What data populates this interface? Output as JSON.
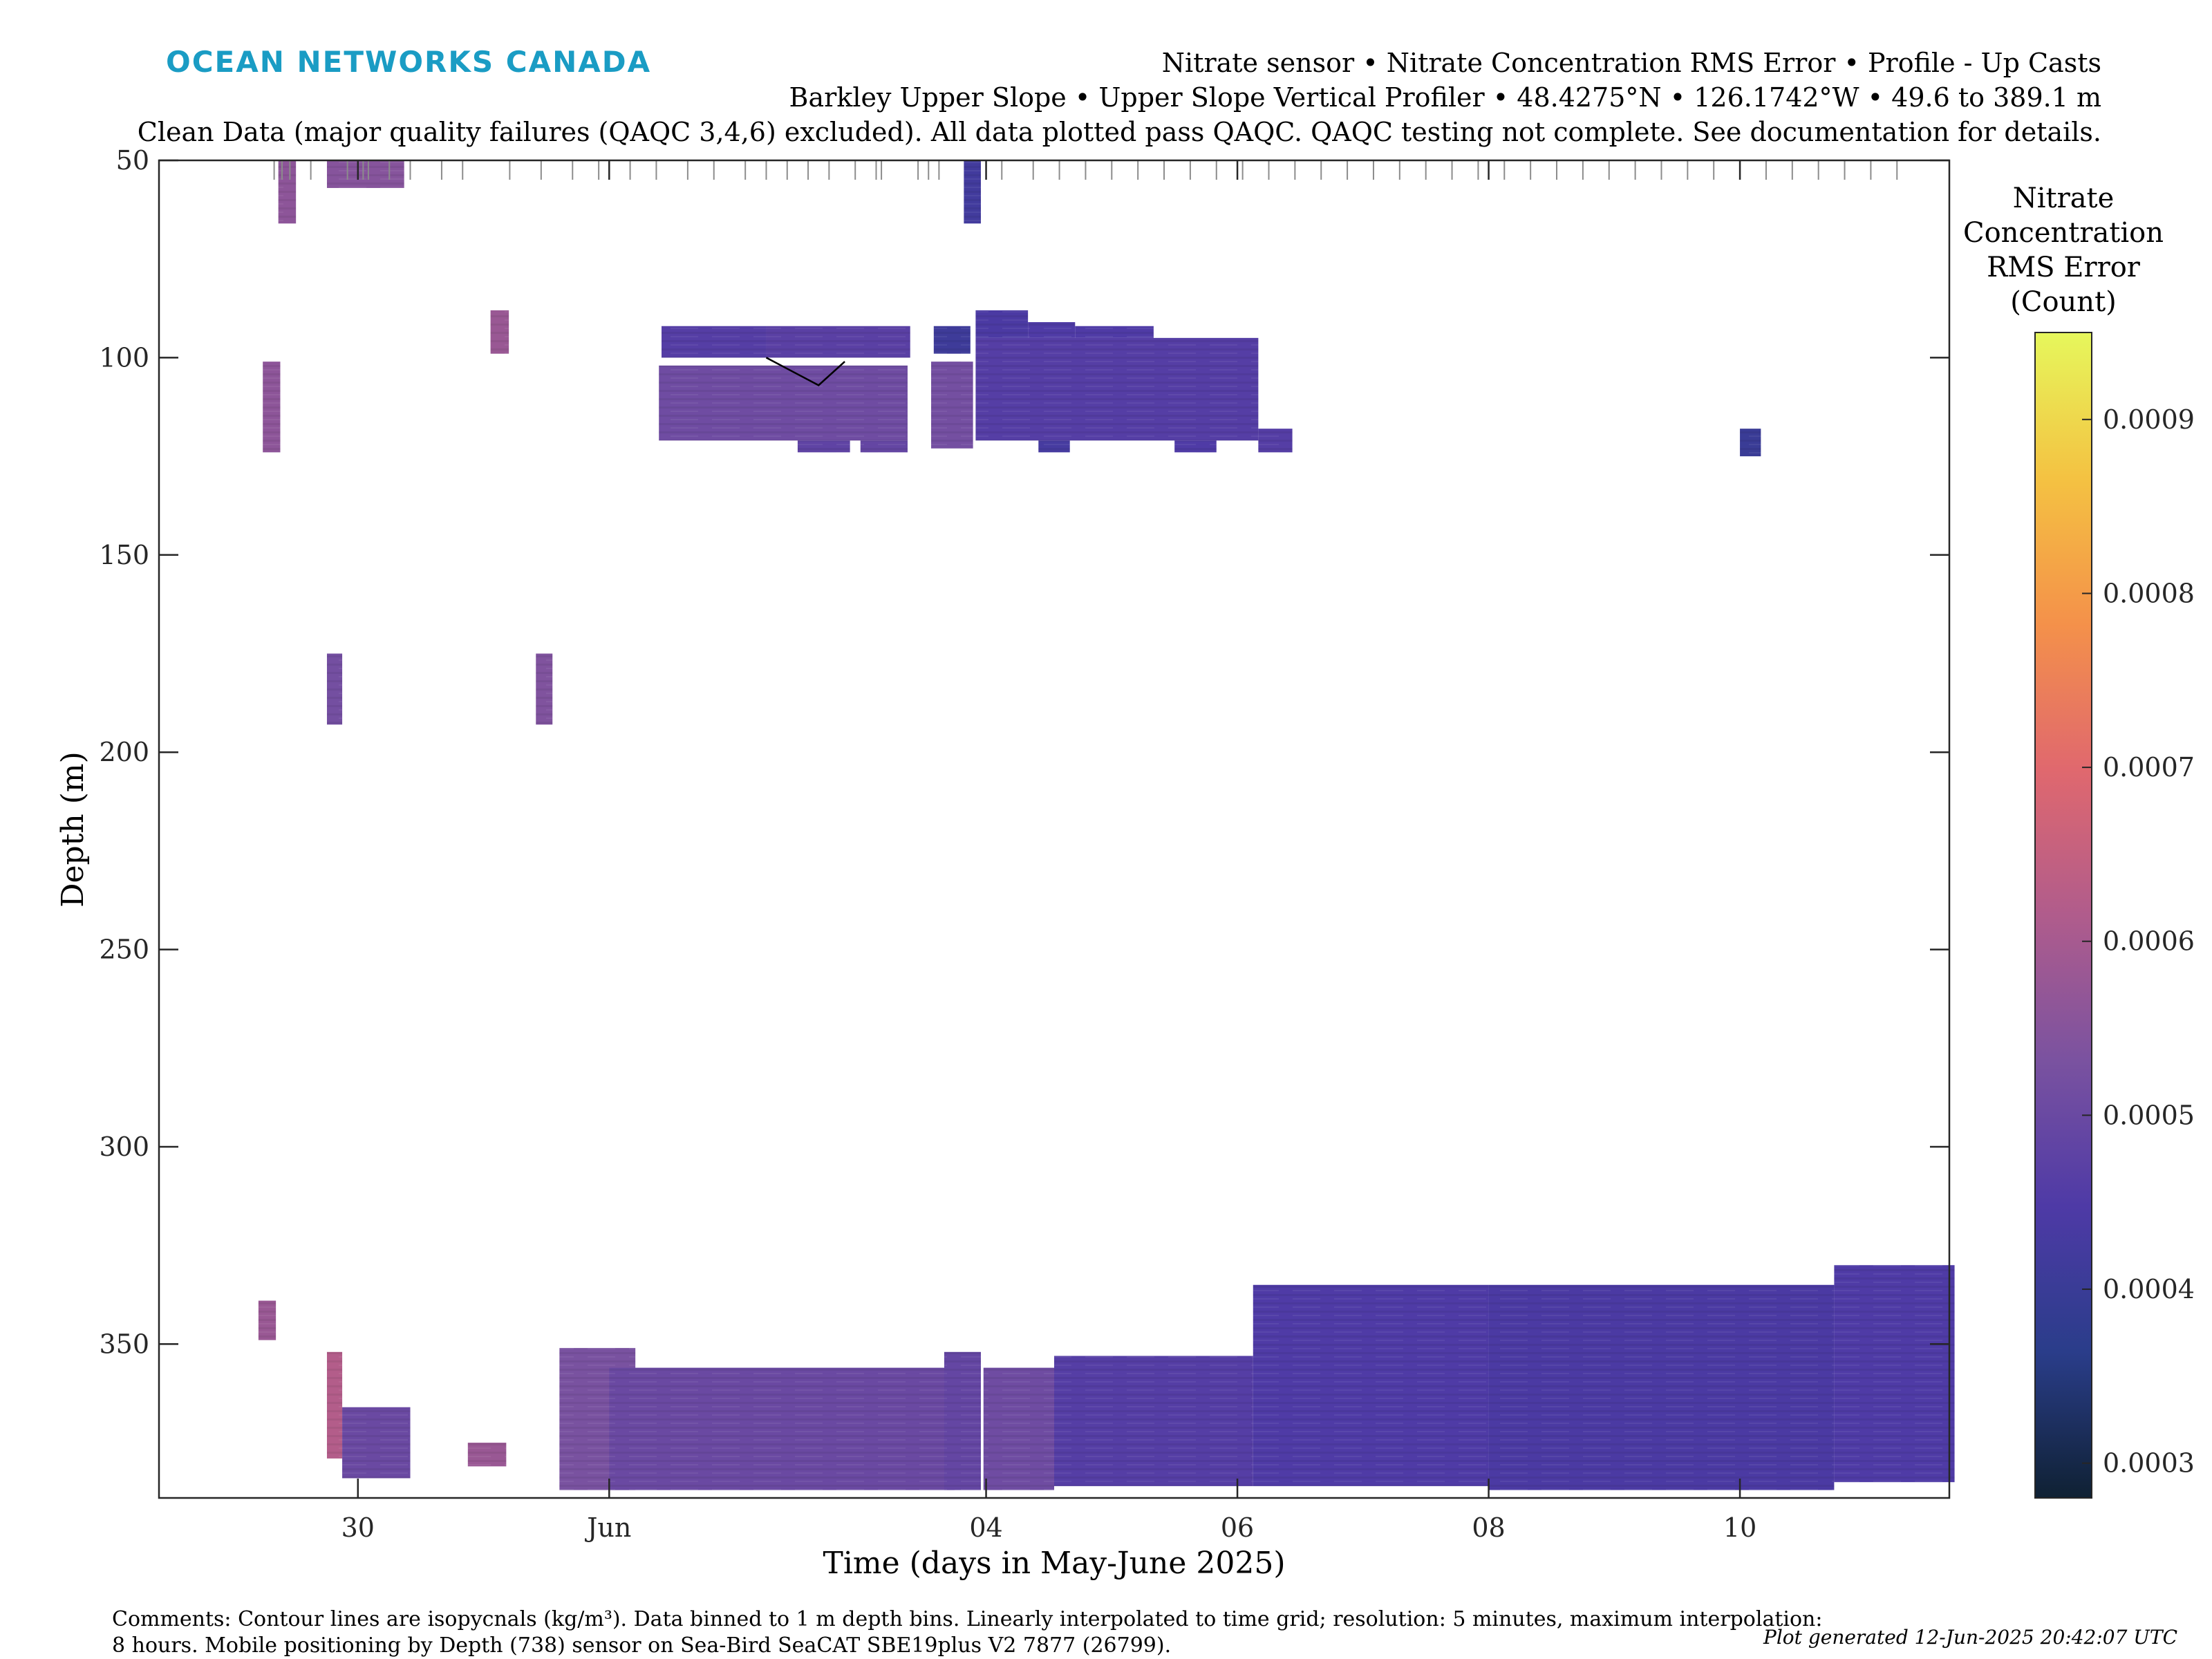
{
  "brand": {
    "logo_text": "OCEAN NETWORKS CANADA",
    "color": "#1a9cc4"
  },
  "header": {
    "line1": "Nitrate sensor • Nitrate Concentration RMS Error • Profile - Up Casts",
    "line2": "Barkley Upper Slope • Upper Slope Vertical Profiler • 48.4275°N • 126.1742°W • 49.6 to 389.1 m",
    "line3": "Clean Data (major quality failures (QAQC 3,4,6) excluded). All data plotted pass QAQC. QAQC testing not complete. See documentation for details."
  },
  "footer": {
    "comments_line1": "Comments: Contour lines are isopycnals (kg/m³). Data binned to 1 m depth bins. Linearly interpolated to time grid; resolution: 5 minutes, maximum interpolation:",
    "comments_line2": "8 hours. Mobile positioning by Depth (738) sensor on Sea-Bird SeaCAT SBE19plus V2 7877 (26799).",
    "generated": "Plot generated 12-Jun-2025 20:42:07 UTC"
  },
  "chart_data": {
    "type": "heatmap",
    "title": "",
    "xlabel": "Time (days in May-June 2025)",
    "ylabel": "Depth (m)",
    "xlim": [
      "2025-05-28T10:00",
      "2025-06-11T16:00"
    ],
    "ylim": [
      50,
      389
    ],
    "y_reversed": true,
    "x_ticks": [
      {
        "t": "2025-05-30T00:00",
        "label": "30"
      },
      {
        "t": "2025-06-01T00:00",
        "label": "Jun"
      },
      {
        "t": "2025-06-04T00:00",
        "label": "04"
      },
      {
        "t": "2025-06-06T00:00",
        "label": "06"
      },
      {
        "t": "2025-06-08T00:00",
        "label": "08"
      },
      {
        "t": "2025-06-10T00:00",
        "label": "10"
      }
    ],
    "y_ticks": [
      50,
      100,
      150,
      200,
      250,
      300,
      350
    ],
    "grid": false,
    "colorbar": {
      "title": [
        "Nitrate",
        "Concentration",
        "RMS Error",
        "(Count)"
      ],
      "min": 0.00028,
      "max": 0.00095,
      "ticks": [
        0.0003,
        0.0004,
        0.0005,
        0.0006,
        0.0007,
        0.0008,
        0.0009
      ],
      "tick_labels": [
        "0.0003",
        "0.0004",
        "0.0005",
        "0.0006",
        "0.0007",
        "0.0008",
        "0.0009"
      ],
      "colormap": [
        "#0f2133",
        "#2a3d8a",
        "#4e3aa6",
        "#7a52a0",
        "#b05c8c",
        "#e0686e",
        "#f4914a",
        "#f4c242",
        "#e6f75c"
      ]
    },
    "cast_times": [
      "2025-05-29T08:00",
      "2025-05-29T09:30",
      "2025-05-29T11:00",
      "2025-05-29T15:00",
      "2025-05-29T22:00",
      "2025-05-30T01:00",
      "2025-05-30T02:00",
      "2025-05-30T06:00",
      "2025-05-30T10:00",
      "2025-05-30T16:00",
      "2025-05-30T20:00",
      "2025-05-31T05:00",
      "2025-05-31T11:00",
      "2025-05-31T17:00",
      "2025-05-31T22:00",
      "2025-06-01T04:00",
      "2025-06-01T09:00",
      "2025-06-01T15:00",
      "2025-06-01T20:00",
      "2025-06-02T02:00",
      "2025-06-02T06:00",
      "2025-06-02T10:00",
      "2025-06-02T14:00",
      "2025-06-02T18:00",
      "2025-06-02T23:00",
      "2025-06-03T03:00",
      "2025-06-03T04:00",
      "2025-06-03T11:00",
      "2025-06-03T13:00",
      "2025-06-03T15:00",
      "2025-06-04T03:00",
      "2025-06-04T09:00",
      "2025-06-04T14:00",
      "2025-06-04T19:00",
      "2025-06-05T00:00",
      "2025-06-05T05:00",
      "2025-06-05T10:00",
      "2025-06-05T15:00",
      "2025-06-05T20:00",
      "2025-06-06T01:00",
      "2025-06-06T06:00",
      "2025-06-06T11:00",
      "2025-06-06T16:00",
      "2025-06-06T21:00",
      "2025-06-07T02:00",
      "2025-06-07T07:00",
      "2025-06-07T12:00",
      "2025-06-07T17:00",
      "2025-06-07T22:00",
      "2025-06-08T03:00",
      "2025-06-08T08:00",
      "2025-06-08T13:00",
      "2025-06-08T18:00",
      "2025-06-08T23:00",
      "2025-06-09T04:00",
      "2025-06-09T09:00",
      "2025-06-09T14:00",
      "2025-06-09T19:00",
      "2025-06-10T00:00",
      "2025-06-10T05:00",
      "2025-06-10T10:00",
      "2025-06-10T15:00",
      "2025-06-10T20:00",
      "2025-06-11T01:00",
      "2025-06-11T06:00"
    ],
    "blocks": [
      {
        "t0": "2025-05-29T08:48",
        "t1": "2025-05-29T12:10",
        "d0": 50,
        "d1": 66,
        "value": 0.00056
      },
      {
        "t0": "2025-05-29T18:05",
        "t1": "2025-05-30T08:50",
        "d0": 50,
        "d1": 57,
        "value": 0.00055
      },
      {
        "t0": "2025-06-03T19:45",
        "t1": "2025-06-03T23:00",
        "d0": 50,
        "d1": 66,
        "value": 0.00042
      },
      {
        "t0": "2025-05-31T01:20",
        "t1": "2025-05-31T04:50",
        "d0": 88,
        "d1": 99,
        "value": 0.00058
      },
      {
        "t0": "2025-05-29T05:50",
        "t1": "2025-05-29T09:10",
        "d0": 101,
        "d1": 124,
        "value": 0.00056
      },
      {
        "t0": "2025-06-01T10:00",
        "t1": "2025-06-02T06:00",
        "d0": 92,
        "d1": 100,
        "value": 0.00046
      },
      {
        "t0": "2025-06-02T06:00",
        "t1": "2025-06-03T09:30",
        "d0": 92,
        "d1": 100,
        "value": 0.00047
      },
      {
        "t0": "2025-06-01T09:30",
        "t1": "2025-06-03T09:00",
        "d0": 102,
        "d1": 121,
        "value": 0.00051
      },
      {
        "t0": "2025-06-02T12:00",
        "t1": "2025-06-02T22:00",
        "d0": 121,
        "d1": 124,
        "value": 0.00048
      },
      {
        "t0": "2025-06-03T00:00",
        "t1": "2025-06-03T09:00",
        "d0": 121,
        "d1": 124,
        "value": 0.00049
      },
      {
        "t0": "2025-06-03T14:00",
        "t1": "2025-06-03T21:00",
        "d0": 92,
        "d1": 99,
        "value": 0.00041
      },
      {
        "t0": "2025-06-03T13:30",
        "t1": "2025-06-03T21:30",
        "d0": 101,
        "d1": 123,
        "value": 0.00052
      },
      {
        "t0": "2025-06-03T22:00",
        "t1": "2025-06-06T04:00",
        "d0": 95,
        "d1": 121,
        "value": 0.00046
      },
      {
        "t0": "2025-06-03T22:00",
        "t1": "2025-06-04T08:00",
        "d0": 88,
        "d1": 95,
        "value": 0.00044
      },
      {
        "t0": "2025-06-04T08:00",
        "t1": "2025-06-04T17:00",
        "d0": 91,
        "d1": 95,
        "value": 0.00045
      },
      {
        "t0": "2025-06-04T17:00",
        "t1": "2025-06-05T08:00",
        "d0": 92,
        "d1": 95,
        "value": 0.00045
      },
      {
        "t0": "2025-06-04T10:00",
        "t1": "2025-06-04T16:00",
        "d0": 121,
        "d1": 124,
        "value": 0.00043
      },
      {
        "t0": "2025-06-05T12:00",
        "t1": "2025-06-05T20:00",
        "d0": 121,
        "d1": 124,
        "value": 0.00045
      },
      {
        "t0": "2025-06-06T04:00",
        "t1": "2025-06-06T10:30",
        "d0": 118,
        "d1": 124,
        "value": 0.00046
      },
      {
        "t0": "2025-06-10T00:00",
        "t1": "2025-06-10T04:00",
        "d0": 118,
        "d1": 125,
        "value": 0.0004
      },
      {
        "t0": "2025-05-29T18:05",
        "t1": "2025-05-29T21:00",
        "d0": 175,
        "d1": 193,
        "value": 0.00052
      },
      {
        "t0": "2025-05-31T10:00",
        "t1": "2025-05-31T13:10",
        "d0": 175,
        "d1": 193,
        "value": 0.00054
      },
      {
        "t0": "2025-05-29T05:00",
        "t1": "2025-05-29T08:20",
        "d0": 339,
        "d1": 349,
        "value": 0.00058
      },
      {
        "t0": "2025-05-29T18:05",
        "t1": "2025-05-29T21:00",
        "d0": 352,
        "d1": 379,
        "value": 0.00062
      },
      {
        "t0": "2025-05-29T21:00",
        "t1": "2025-05-30T10:00",
        "d0": 366,
        "d1": 384,
        "value": 0.0005
      },
      {
        "t0": "2025-05-30T21:00",
        "t1": "2025-05-31T04:20",
        "d0": 375,
        "d1": 381,
        "value": 0.00058
      },
      {
        "t0": "2025-05-31T14:30",
        "t1": "2025-06-01T05:00",
        "d0": 351,
        "d1": 387,
        "value": 0.00053
      },
      {
        "t0": "2025-06-01T00:00",
        "t1": "2025-06-03T18:00",
        "d0": 356,
        "d1": 387,
        "value": 0.0005
      },
      {
        "t0": "2025-06-03T23:30",
        "t1": "2025-06-04T13:00",
        "d0": 356,
        "d1": 387,
        "value": 0.00051
      },
      {
        "t0": "2025-06-03T16:00",
        "t1": "2025-06-03T23:00",
        "d0": 352,
        "d1": 387,
        "value": 0.00049
      },
      {
        "t0": "2025-06-04T13:00",
        "t1": "2025-06-06T03:00",
        "d0": 353,
        "d1": 386,
        "value": 0.00046
      },
      {
        "t0": "2025-06-06T03:00",
        "t1": "2025-06-08T00:00",
        "d0": 335,
        "d1": 386,
        "value": 0.00045
      },
      {
        "t0": "2025-06-08T00:00",
        "t1": "2025-06-10T18:00",
        "d0": 335,
        "d1": 387,
        "value": 0.00044
      },
      {
        "t0": "2025-06-10T18:00",
        "t1": "2025-06-11T17:00",
        "d0": 330,
        "d1": 385,
        "value": 0.00045
      }
    ],
    "annotations": [
      {
        "type": "isopycnal-fragment",
        "points": [
          [
            "2025-06-02T06:00",
            100
          ],
          [
            "2025-06-02T16:00",
            107
          ],
          [
            "2025-06-02T21:00",
            101
          ]
        ]
      }
    ]
  }
}
